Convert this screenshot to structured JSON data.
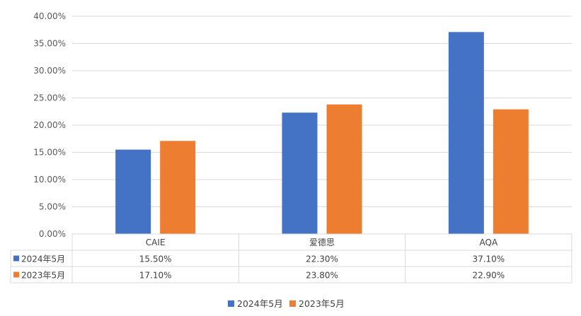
{
  "chart_data": {
    "type": "bar",
    "title": "",
    "xlabel": "",
    "ylabel": "",
    "categories": [
      "CAIE",
      "爱德思",
      "AQA"
    ],
    "series": [
      {
        "name": "2024年5月",
        "values": [
          15.5,
          22.3,
          37.1
        ],
        "labels": [
          "15.50%",
          "22.30%",
          "37.10%"
        ],
        "color": "#4472C4"
      },
      {
        "name": "2023年5月",
        "values": [
          17.1,
          23.8,
          22.9
        ],
        "labels": [
          "17.10%",
          "23.80%",
          "22.90%"
        ],
        "color": "#ED7D31"
      }
    ],
    "ylim": [
      0,
      40
    ],
    "yticks": [
      0,
      5,
      10,
      15,
      20,
      25,
      30,
      35,
      40
    ],
    "ytick_labels": [
      "0.00%",
      "5.00%",
      "10.00%",
      "15.00%",
      "20.00%",
      "25.00%",
      "30.00%",
      "35.00%",
      "40.00%"
    ],
    "grid": true,
    "data_table": true,
    "legend_position": "bottom-center",
    "colors": {
      "grid": "#D9D9D9",
      "text": "#595959"
    }
  }
}
